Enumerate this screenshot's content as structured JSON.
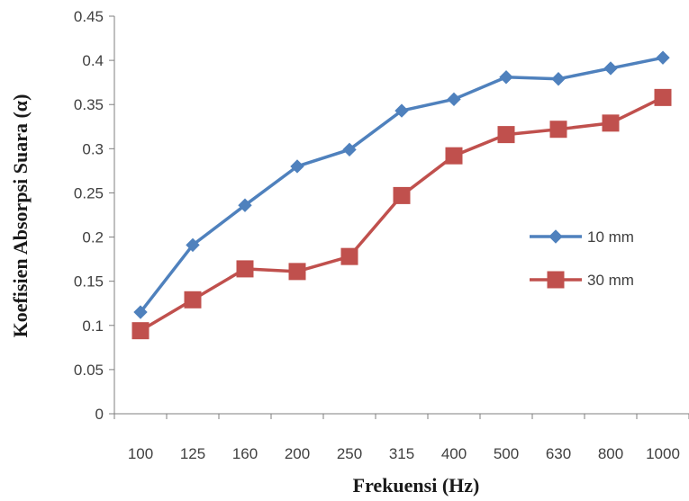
{
  "chart_data": {
    "type": "line",
    "xlabel": "Frekuensi (Hz)",
    "ylabel": "Koefisien Absorpsi Suara (α)",
    "categories": [
      "100",
      "125",
      "160",
      "200",
      "250",
      "315",
      "400",
      "500",
      "630",
      "800",
      "1000"
    ],
    "ylim": [
      0,
      0.45
    ],
    "yticks": [
      "0",
      "0.05",
      "0.1",
      "0.15",
      "0.2",
      "0.25",
      "0.3",
      "0.35",
      "0.4",
      "0.45"
    ],
    "grid": false,
    "legend_position": "right",
    "series": [
      {
        "name": "10 mm",
        "color": "#4F81BD",
        "marker": "diamond",
        "values": [
          0.115,
          0.191,
          0.236,
          0.28,
          0.299,
          0.343,
          0.356,
          0.381,
          0.379,
          0.391,
          0.403
        ]
      },
      {
        "name": "30 mm",
        "color": "#C0504D",
        "marker": "square",
        "values": [
          0.094,
          0.129,
          0.164,
          0.161,
          0.178,
          0.247,
          0.292,
          0.316,
          0.322,
          0.329,
          0.358
        ]
      }
    ]
  }
}
